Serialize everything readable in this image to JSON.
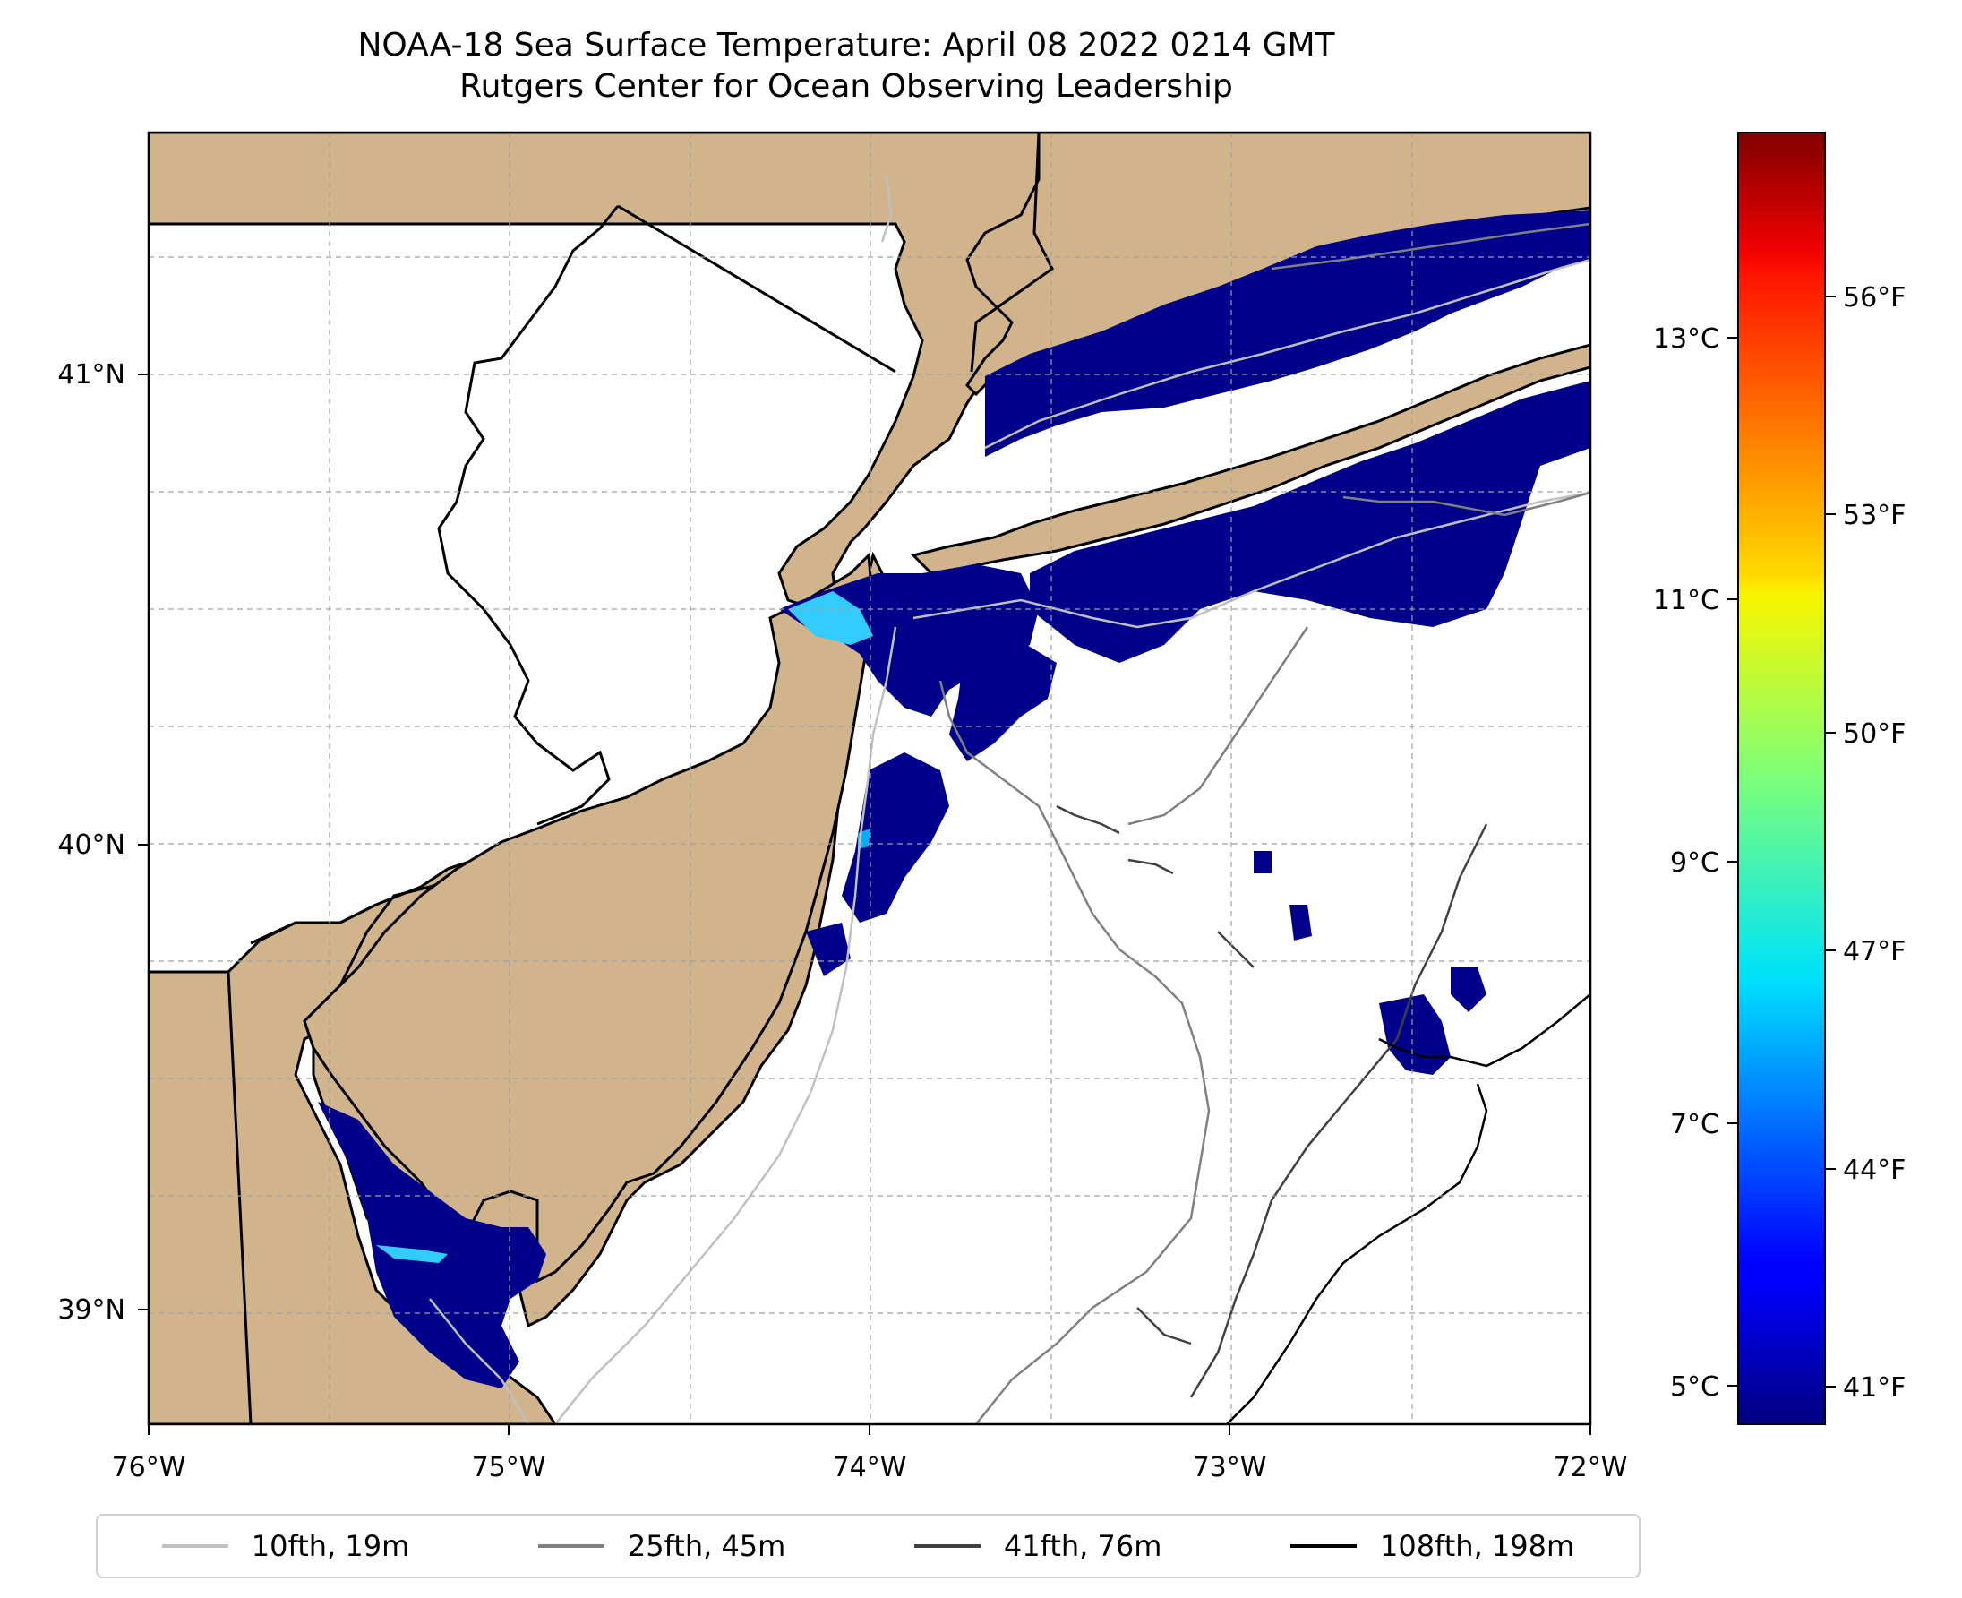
{
  "title": {
    "line1": "NOAA-18 Sea Surface Temperature: April 08 2022 0214 GMT",
    "line2": "Rutgers Center for Ocean Observing Leadership"
  },
  "map": {
    "lon_range": [
      -76,
      -72
    ],
    "lat_range": [
      38.75,
      41.5
    ],
    "x_ticks": [
      "76°W",
      "75°W",
      "74°W",
      "73°W",
      "72°W"
    ],
    "y_ticks": [
      "41°N",
      "40°N",
      "39°N"
    ],
    "land_color": "#d2b48c",
    "ocean_no_data_color": "#ffffff",
    "grid": "on"
  },
  "colorbar": {
    "colormap": "jet",
    "celsius_ticks": [
      "5°C",
      "7°C",
      "9°C",
      "11°C",
      "13°C"
    ],
    "fahrenheit_ticks": [
      "41°F",
      "44°F",
      "47°F",
      "50°F",
      "53°F",
      "56°F"
    ]
  },
  "legend": {
    "items": [
      {
        "label": "10fth, 19m",
        "color": "#c0c0c0"
      },
      {
        "label": "25fth, 45m",
        "color": "#808080"
      },
      {
        "label": "41fth, 76m",
        "color": "#404040"
      },
      {
        "label": "108fth, 198m",
        "color": "#000000"
      }
    ]
  }
}
